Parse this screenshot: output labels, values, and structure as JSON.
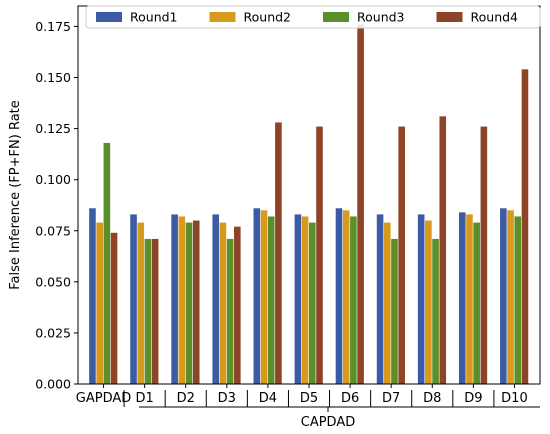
{
  "chart_data": {
    "type": "bar",
    "ylabel": "False Inference (FP+FN) Rate",
    "xgroup_label": "CAPDAD",
    "categories": [
      "GAPDAD",
      "D1",
      "D2",
      "D3",
      "D4",
      "D5",
      "D6",
      "D7",
      "D8",
      "D9",
      "D10"
    ],
    "ylim": [
      0,
      0.185
    ],
    "yticks": [
      "0.000",
      "0.025",
      "0.050",
      "0.075",
      "0.100",
      "0.125",
      "0.150",
      "0.175"
    ],
    "grid": false,
    "legend_position": "top",
    "series": [
      {
        "name": "Round1",
        "color": "#3b5ba5",
        "values": [
          0.086,
          0.083,
          0.083,
          0.083,
          0.086,
          0.083,
          0.086,
          0.083,
          0.083,
          0.084,
          0.086
        ]
      },
      {
        "name": "Round2",
        "color": "#d89a1c",
        "values": [
          0.079,
          0.079,
          0.082,
          0.079,
          0.085,
          0.082,
          0.085,
          0.079,
          0.08,
          0.083,
          0.085
        ]
      },
      {
        "name": "Round3",
        "color": "#5a8f29",
        "values": [
          0.118,
          0.071,
          0.079,
          0.071,
          0.082,
          0.079,
          0.082,
          0.071,
          0.071,
          0.079,
          0.082
        ]
      },
      {
        "name": "Round4",
        "color": "#8e4427",
        "values": [
          0.074,
          0.071,
          0.08,
          0.077,
          0.128,
          0.126,
          0.176,
          0.126,
          0.131,
          0.126,
          0.154
        ]
      }
    ]
  }
}
